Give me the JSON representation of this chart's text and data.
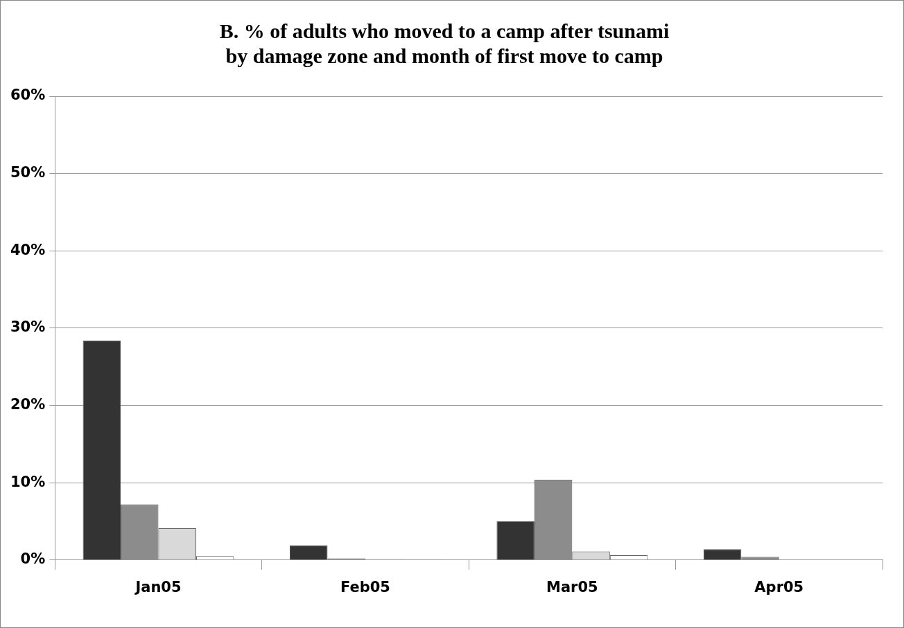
{
  "chart_data": {
    "type": "bar",
    "title": "B. % of adults who moved to a camp after tsunami\nby damage zone and month of first move to camp",
    "categories": [
      "Jan05",
      "Feb05",
      "Mar05",
      "Apr05"
    ],
    "series": [
      {
        "color": "#333333",
        "values": [
          28.4,
          1.9,
          5.0,
          1.4
        ]
      },
      {
        "color": "#8c8c8c",
        "values": [
          7.2,
          0.2,
          10.4,
          0.4
        ]
      },
      {
        "color": "#d9d9d9",
        "values": [
          4.1,
          0.1,
          1.1,
          0
        ]
      },
      {
        "color": "#ffffff",
        "values": [
          0.5,
          0.1,
          0.6,
          0
        ]
      }
    ],
    "ylim": [
      0,
      60
    ],
    "yticks": [
      {
        "value": 0,
        "label": "0%"
      },
      {
        "value": 10,
        "label": "10%"
      },
      {
        "value": 20,
        "label": "20%"
      },
      {
        "value": 30,
        "label": "30%"
      },
      {
        "value": 40,
        "label": "40%"
      },
      {
        "value": 50,
        "label": "50%"
      },
      {
        "value": 60,
        "label": "60%"
      }
    ],
    "grid": "y",
    "legend": false
  }
}
